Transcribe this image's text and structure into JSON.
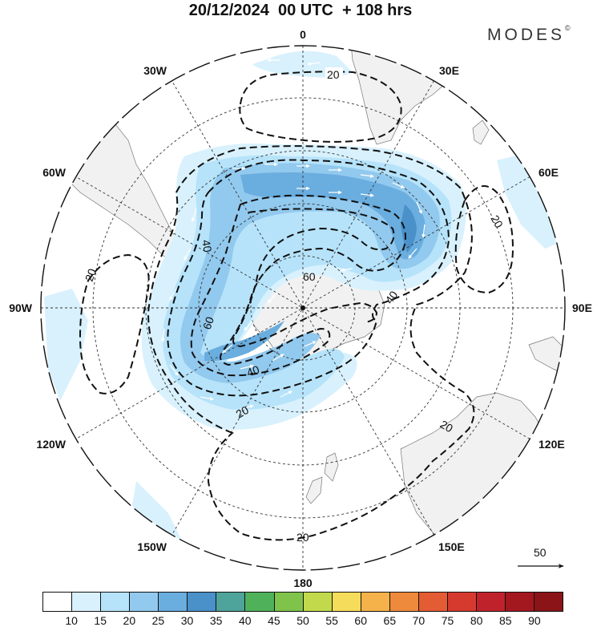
{
  "header": {
    "title": "20/12/2024  00 UTC  + 108 hrs",
    "brand": "MODES",
    "brand_mark": "©"
  },
  "map": {
    "projection": "south-polar-stereographic",
    "longitude_labels": {
      "lon_0": "0",
      "lon_30e": "30E",
      "lon_60e": "60E",
      "lon_90e": "90E",
      "lon_120e": "120E",
      "lon_150e": "150E",
      "lon_180": "180",
      "lon_150w": "150W",
      "lon_120w": "120W",
      "lon_90w": "90W",
      "lon_60w": "60W",
      "lon_30w": "30W"
    },
    "contour_labels": {
      "c_n20": "20",
      "c_w40": "40",
      "c_w20": "20",
      "c_w60": "60",
      "c_c60": "60",
      "c_e40": "40",
      "c_s40": "40",
      "c_sw20": "20",
      "c_ne20": "20",
      "c_se20": "20",
      "c_s20": "20"
    },
    "land_color": "#f1f1f1",
    "reference_vector": "50"
  },
  "colorbar": {
    "colors": [
      "#ffffff",
      "#d8f1fd",
      "#b6e3fa",
      "#92c9ee",
      "#6aaddf",
      "#4a90c9",
      "#4ea39a",
      "#4fb25b",
      "#7fc34b",
      "#c2d94c",
      "#f5dc5a",
      "#f6b24a",
      "#ee8a3c",
      "#e45c33",
      "#d63a2f",
      "#c0222b",
      "#a3181f",
      "#8a1418"
    ],
    "ticks": {
      "t10": "10",
      "t15": "15",
      "t20": "20",
      "t25": "25",
      "t30": "30",
      "t35": "35",
      "t40": "40",
      "t45": "45",
      "t50": "50",
      "t55": "55",
      "t60": "60",
      "t65": "65",
      "t70": "70",
      "t75": "75",
      "t80": "80",
      "t85": "85",
      "t90": "90"
    }
  }
}
